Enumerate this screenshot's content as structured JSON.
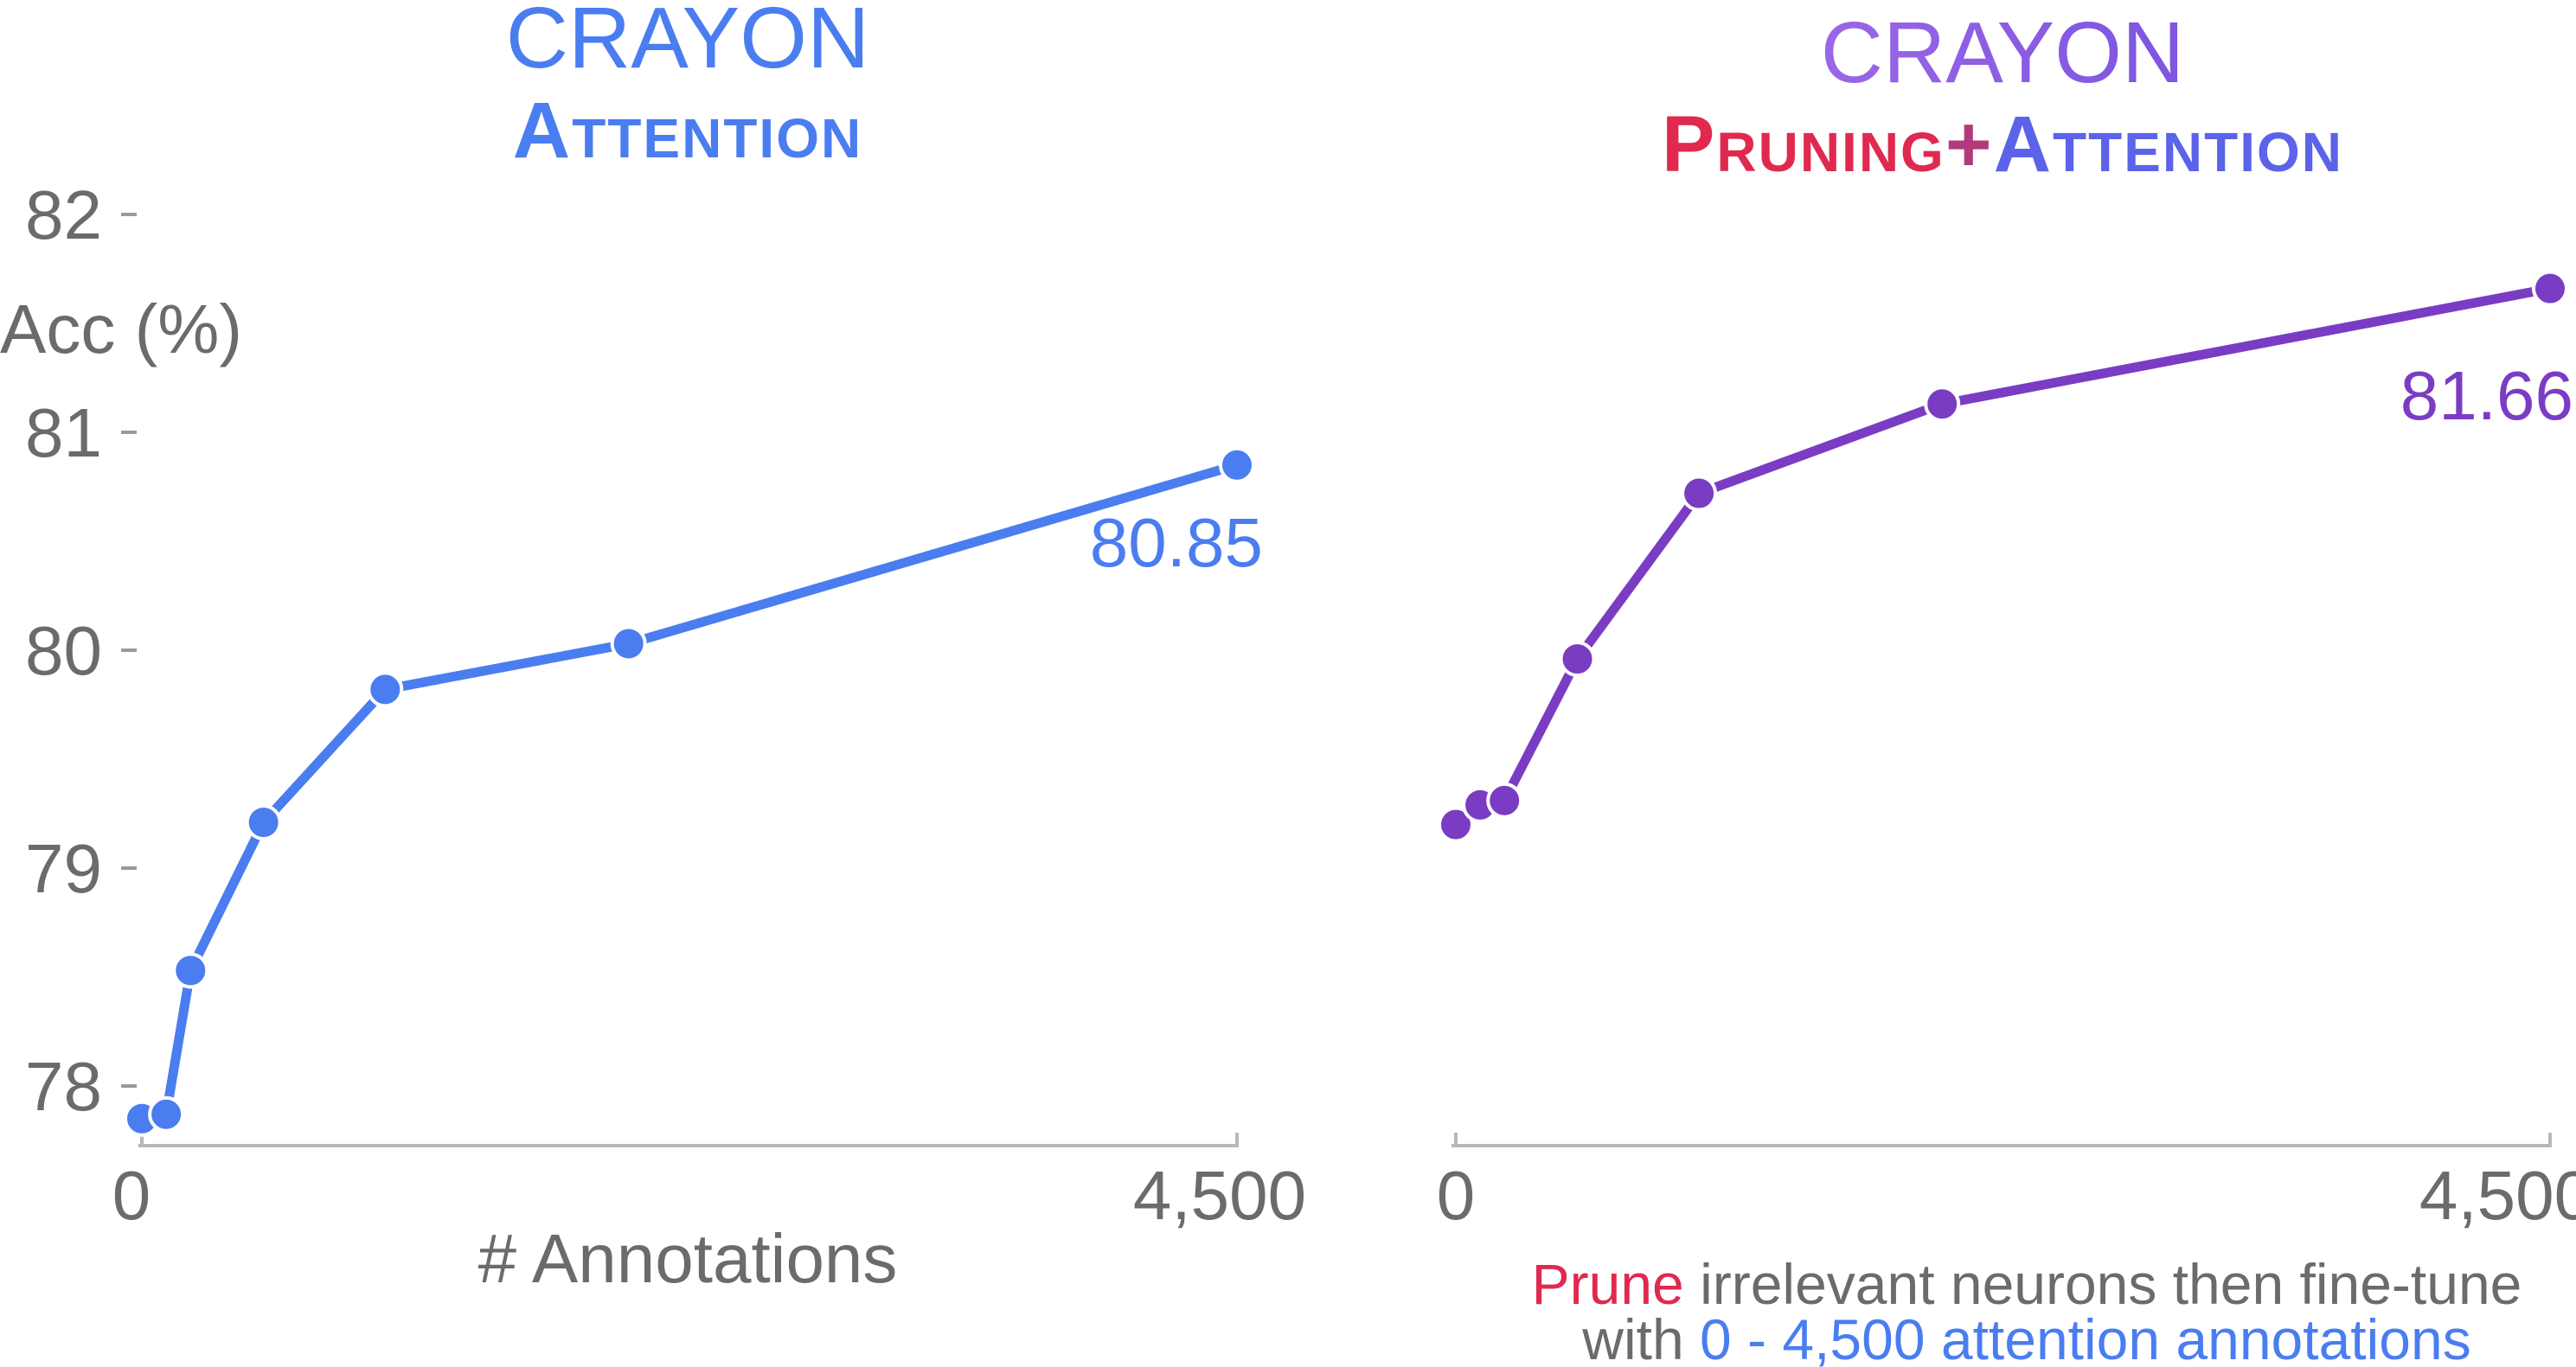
{
  "chart_data": [
    {
      "type": "line",
      "title": "CRAYON",
      "subtitle": "Attention",
      "ylabel": "Acc (%)",
      "xlabel": "# Annotations",
      "x_ticks": [
        "0",
        "4,500"
      ],
      "y_ticks": [
        "78",
        "79",
        "80",
        "81",
        "82"
      ],
      "xlim": [
        0,
        4500
      ],
      "ylim": [
        77.8,
        82.0
      ],
      "grid": false,
      "color": "#4a7df0",
      "x": [
        0,
        100,
        200,
        500,
        1000,
        2000,
        4500
      ],
      "values": [
        77.85,
        77.87,
        78.53,
        79.21,
        79.82,
        80.03,
        80.85
      ],
      "annotations": [
        {
          "x": 4500,
          "y": 80.85,
          "text": "80.85"
        }
      ]
    },
    {
      "type": "line",
      "title": "CRAYON",
      "subtitle_parts": [
        {
          "text": "Pruning",
          "color": "#e0294f"
        },
        {
          "text": "+",
          "color": "#b23a7a"
        },
        {
          "text": "Attention",
          "color": "#5b63e8"
        }
      ],
      "x_ticks": [
        "0",
        "4,500"
      ],
      "xlim": [
        0,
        4500
      ],
      "ylim": [
        77.8,
        82.0
      ],
      "grid": false,
      "color": "#7b3cc4",
      "x": [
        0,
        100,
        200,
        500,
        1000,
        2000,
        4500
      ],
      "values": [
        79.2,
        79.29,
        79.31,
        79.96,
        80.72,
        81.13,
        81.66
      ],
      "annotations": [
        {
          "x": 4500,
          "y": 81.66,
          "text": "81.66"
        }
      ],
      "caption": {
        "line1_highlight": "Prune",
        "line1_rest": " irrelevant neurons then fine-tune",
        "line2_prefix": "with ",
        "line2_highlight": "0 - 4,500 attention annotations",
        "highlight1_color": "#e0294f",
        "highlight2_color": "#4a7df0"
      }
    }
  ]
}
